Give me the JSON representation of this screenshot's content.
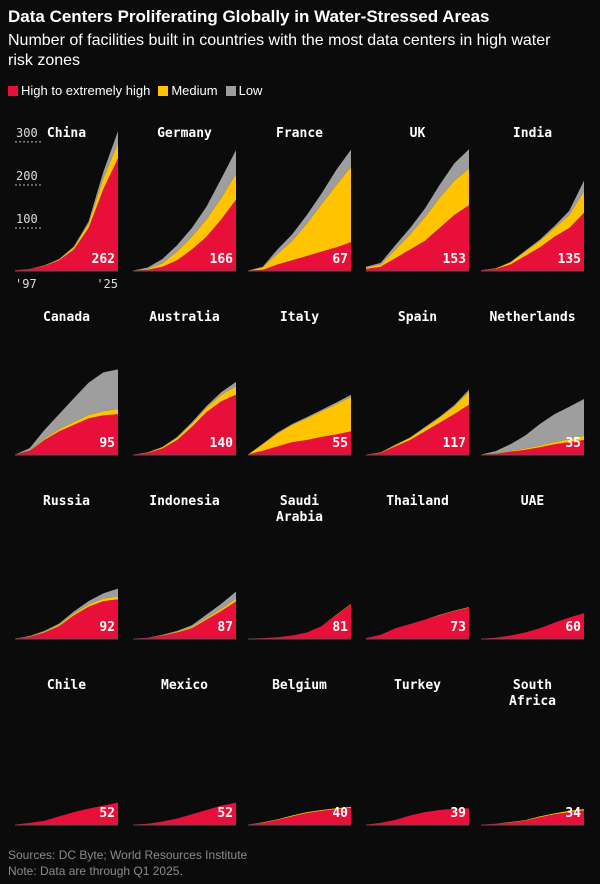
{
  "title": "Data Centers Proliferating Globally in Water-Stressed Areas",
  "subtitle": "Number of facilities built in countries with the most data centers in high water risk zones",
  "sources": "Sources: DC Byte; World Resources Institute",
  "note": "Note: Data are through Q1 2025.",
  "chart_data": {
    "type": "area",
    "x": [
      1997,
      2001,
      2005,
      2009,
      2013,
      2017,
      2021,
      2025
    ],
    "xlim": [
      1997,
      2025
    ],
    "xticks": [
      {
        "value": 1997,
        "label": "'97"
      },
      {
        "value": 2025,
        "label": "'25"
      }
    ],
    "ylim": [
      0,
      330
    ],
    "yticks": [
      100,
      200,
      300
    ],
    "series": [
      {
        "name": "High to extremely high",
        "color": "#e8103a"
      },
      {
        "name": "Medium",
        "color": "#ffc300"
      },
      {
        "name": "Low",
        "color": "#9e9e9e"
      }
    ],
    "panels": [
      {
        "title": "China",
        "series": [
          {
            "values": [
              2,
              5,
              12,
              25,
              50,
              100,
              190,
              262
            ]
          },
          {
            "values": [
              0,
              0,
              1,
              2,
              5,
              10,
              25,
              35
            ]
          },
          {
            "values": [
              0,
              0,
              0,
              1,
              2,
              5,
              15,
              28
            ]
          }
        ]
      },
      {
        "title": "Germany",
        "series": [
          {
            "values": [
              1,
              3,
              10,
              25,
              50,
              80,
              120,
              166
            ]
          },
          {
            "values": [
              0,
              2,
              8,
              20,
              30,
              40,
              50,
              60
            ]
          },
          {
            "values": [
              0,
              3,
              10,
              15,
              20,
              30,
              45,
              55
            ]
          }
        ]
      },
      {
        "title": "France",
        "series": [
          {
            "values": [
              1,
              3,
              15,
              25,
              35,
              45,
              55,
              67
            ]
          },
          {
            "values": [
              0,
              5,
              25,
              45,
              75,
              110,
              145,
              175
            ]
          },
          {
            "values": [
              0,
              2,
              10,
              15,
              20,
              25,
              35,
              40
            ]
          }
        ]
      },
      {
        "title": "UK",
        "series": [
          {
            "values": [
              5,
              10,
              30,
              50,
              70,
              100,
              130,
              153
            ]
          },
          {
            "values": [
              3,
              5,
              20,
              35,
              55,
              70,
              80,
              85
            ]
          },
          {
            "values": [
              2,
              4,
              10,
              15,
              20,
              30,
              40,
              45
            ]
          }
        ]
      },
      {
        "title": "India",
        "series": [
          {
            "values": [
              2,
              5,
              15,
              35,
              55,
              80,
              100,
              135
            ]
          },
          {
            "values": [
              0,
              1,
              5,
              10,
              15,
              20,
              30,
              50
            ]
          },
          {
            "values": [
              0,
              0,
              1,
              2,
              3,
              5,
              10,
              25
            ]
          }
        ]
      },
      {
        "title": "Canada",
        "series": [
          {
            "values": [
              1,
              10,
              35,
              55,
              70,
              85,
              92,
              95
            ]
          },
          {
            "values": [
              0,
              1,
              3,
              5,
              7,
              8,
              10,
              12
            ]
          },
          {
            "values": [
              0,
              5,
              20,
              35,
              55,
              75,
              90,
              92
            ]
          }
        ]
      },
      {
        "title": "Australia",
        "series": [
          {
            "values": [
              1,
              5,
              15,
              35,
              65,
              100,
              125,
              140
            ]
          },
          {
            "values": [
              0,
              1,
              3,
              5,
              8,
              10,
              15,
              20
            ]
          },
          {
            "values": [
              0,
              0,
              1,
              2,
              3,
              4,
              6,
              10
            ]
          }
        ]
      },
      {
        "title": "Italy",
        "series": [
          {
            "values": [
              1,
              10,
              20,
              30,
              35,
              42,
              48,
              55
            ]
          },
          {
            "values": [
              0,
              15,
              30,
              40,
              50,
              60,
              70,
              80
            ]
          },
          {
            "values": [
              0,
              1,
              2,
              2,
              3,
              3,
              4,
              5
            ]
          }
        ]
      },
      {
        "title": "Spain",
        "series": [
          {
            "values": [
              1,
              5,
              20,
              35,
              55,
              75,
              95,
              117
            ]
          },
          {
            "values": [
              0,
              1,
              3,
              5,
              8,
              12,
              18,
              30
            ]
          },
          {
            "values": [
              0,
              0,
              1,
              1,
              2,
              2,
              3,
              5
            ]
          }
        ]
      },
      {
        "title": "Netherlands",
        "series": [
          {
            "values": [
              1,
              3,
              8,
              12,
              18,
              25,
              30,
              35
            ]
          },
          {
            "values": [
              0,
              1,
              2,
              3,
              4,
              5,
              7,
              10
            ]
          },
          {
            "values": [
              0,
              5,
              15,
              30,
              50,
              65,
              75,
              85
            ]
          }
        ]
      },
      {
        "title": "Russia",
        "series": [
          {
            "values": [
              1,
              5,
              15,
              30,
              55,
              75,
              88,
              92
            ]
          },
          {
            "values": [
              0,
              1,
              2,
              3,
              4,
              5,
              6,
              7
            ]
          },
          {
            "values": [
              0,
              1,
              2,
              3,
              5,
              8,
              12,
              18
            ]
          }
        ]
      },
      {
        "title": "Indonesia",
        "series": [
          {
            "values": [
              1,
              3,
              8,
              15,
              25,
              45,
              65,
              87
            ]
          },
          {
            "values": [
              0,
              0,
              1,
              2,
              3,
              4,
              5,
              7
            ]
          },
          {
            "values": [
              0,
              0,
              1,
              2,
              4,
              8,
              12,
              16
            ]
          }
        ]
      },
      {
        "title": "Saudi Arabia",
        "series": [
          {
            "values": [
              1,
              2,
              4,
              8,
              15,
              30,
              55,
              81
            ]
          },
          {
            "values": [
              0,
              0,
              0,
              0,
              0,
              0,
              1,
              1
            ]
          },
          {
            "values": [
              0,
              0,
              0,
              0,
              0,
              0,
              0,
              0
            ]
          }
        ]
      },
      {
        "title": "Thailand",
        "series": [
          {
            "values": [
              2,
              10,
              25,
              35,
              45,
              55,
              65,
              73
            ]
          },
          {
            "values": [
              0,
              0,
              0,
              0,
              0,
              1,
              1,
              1
            ]
          },
          {
            "values": [
              0,
              0,
              0,
              0,
              0,
              0,
              0,
              0
            ]
          }
        ]
      },
      {
        "title": "UAE",
        "series": [
          {
            "values": [
              1,
              3,
              8,
              15,
              25,
              38,
              50,
              60
            ]
          },
          {
            "values": [
              0,
              0,
              0,
              0,
              0,
              0,
              0,
              0
            ]
          },
          {
            "values": [
              0,
              0,
              0,
              0,
              0,
              0,
              0,
              0
            ]
          }
        ]
      },
      {
        "title": "Chile",
        "series": [
          {
            "values": [
              1,
              5,
              10,
              20,
              30,
              38,
              45,
              52
            ]
          },
          {
            "values": [
              0,
              0,
              0,
              0,
              0,
              0,
              0,
              0
            ]
          },
          {
            "values": [
              0,
              0,
              0,
              0,
              0,
              0,
              0,
              0
            ]
          }
        ]
      },
      {
        "title": "Mexico",
        "series": [
          {
            "values": [
              1,
              3,
              8,
              15,
              25,
              35,
              45,
              52
            ]
          },
          {
            "values": [
              0,
              0,
              0,
              0,
              0,
              0,
              0,
              0
            ]
          },
          {
            "values": [
              0,
              0,
              0,
              0,
              0,
              0,
              0,
              0
            ]
          }
        ]
      },
      {
        "title": "Belgium",
        "series": [
          {
            "values": [
              1,
              5,
              12,
              20,
              28,
              33,
              37,
              40
            ]
          },
          {
            "values": [
              0,
              1,
              1,
              2,
              2,
              2,
              2,
              2
            ]
          },
          {
            "values": [
              0,
              0,
              0,
              0,
              0,
              0,
              0,
              0
            ]
          }
        ]
      },
      {
        "title": "Turkey",
        "series": [
          {
            "values": [
              1,
              5,
              12,
              22,
              30,
              35,
              38,
              39
            ]
          },
          {
            "values": [
              0,
              0,
              0,
              0,
              0,
              0,
              0,
              0
            ]
          },
          {
            "values": [
              0,
              0,
              0,
              0,
              0,
              0,
              0,
              0
            ]
          }
        ]
      },
      {
        "title": "South Africa",
        "series": [
          {
            "values": [
              1,
              3,
              6,
              10,
              18,
              25,
              30,
              34
            ]
          },
          {
            "values": [
              0,
              0,
              1,
              1,
              2,
              2,
              3,
              3
            ]
          },
          {
            "values": [
              0,
              0,
              0,
              0,
              0,
              0,
              0,
              0
            ]
          }
        ]
      }
    ]
  }
}
